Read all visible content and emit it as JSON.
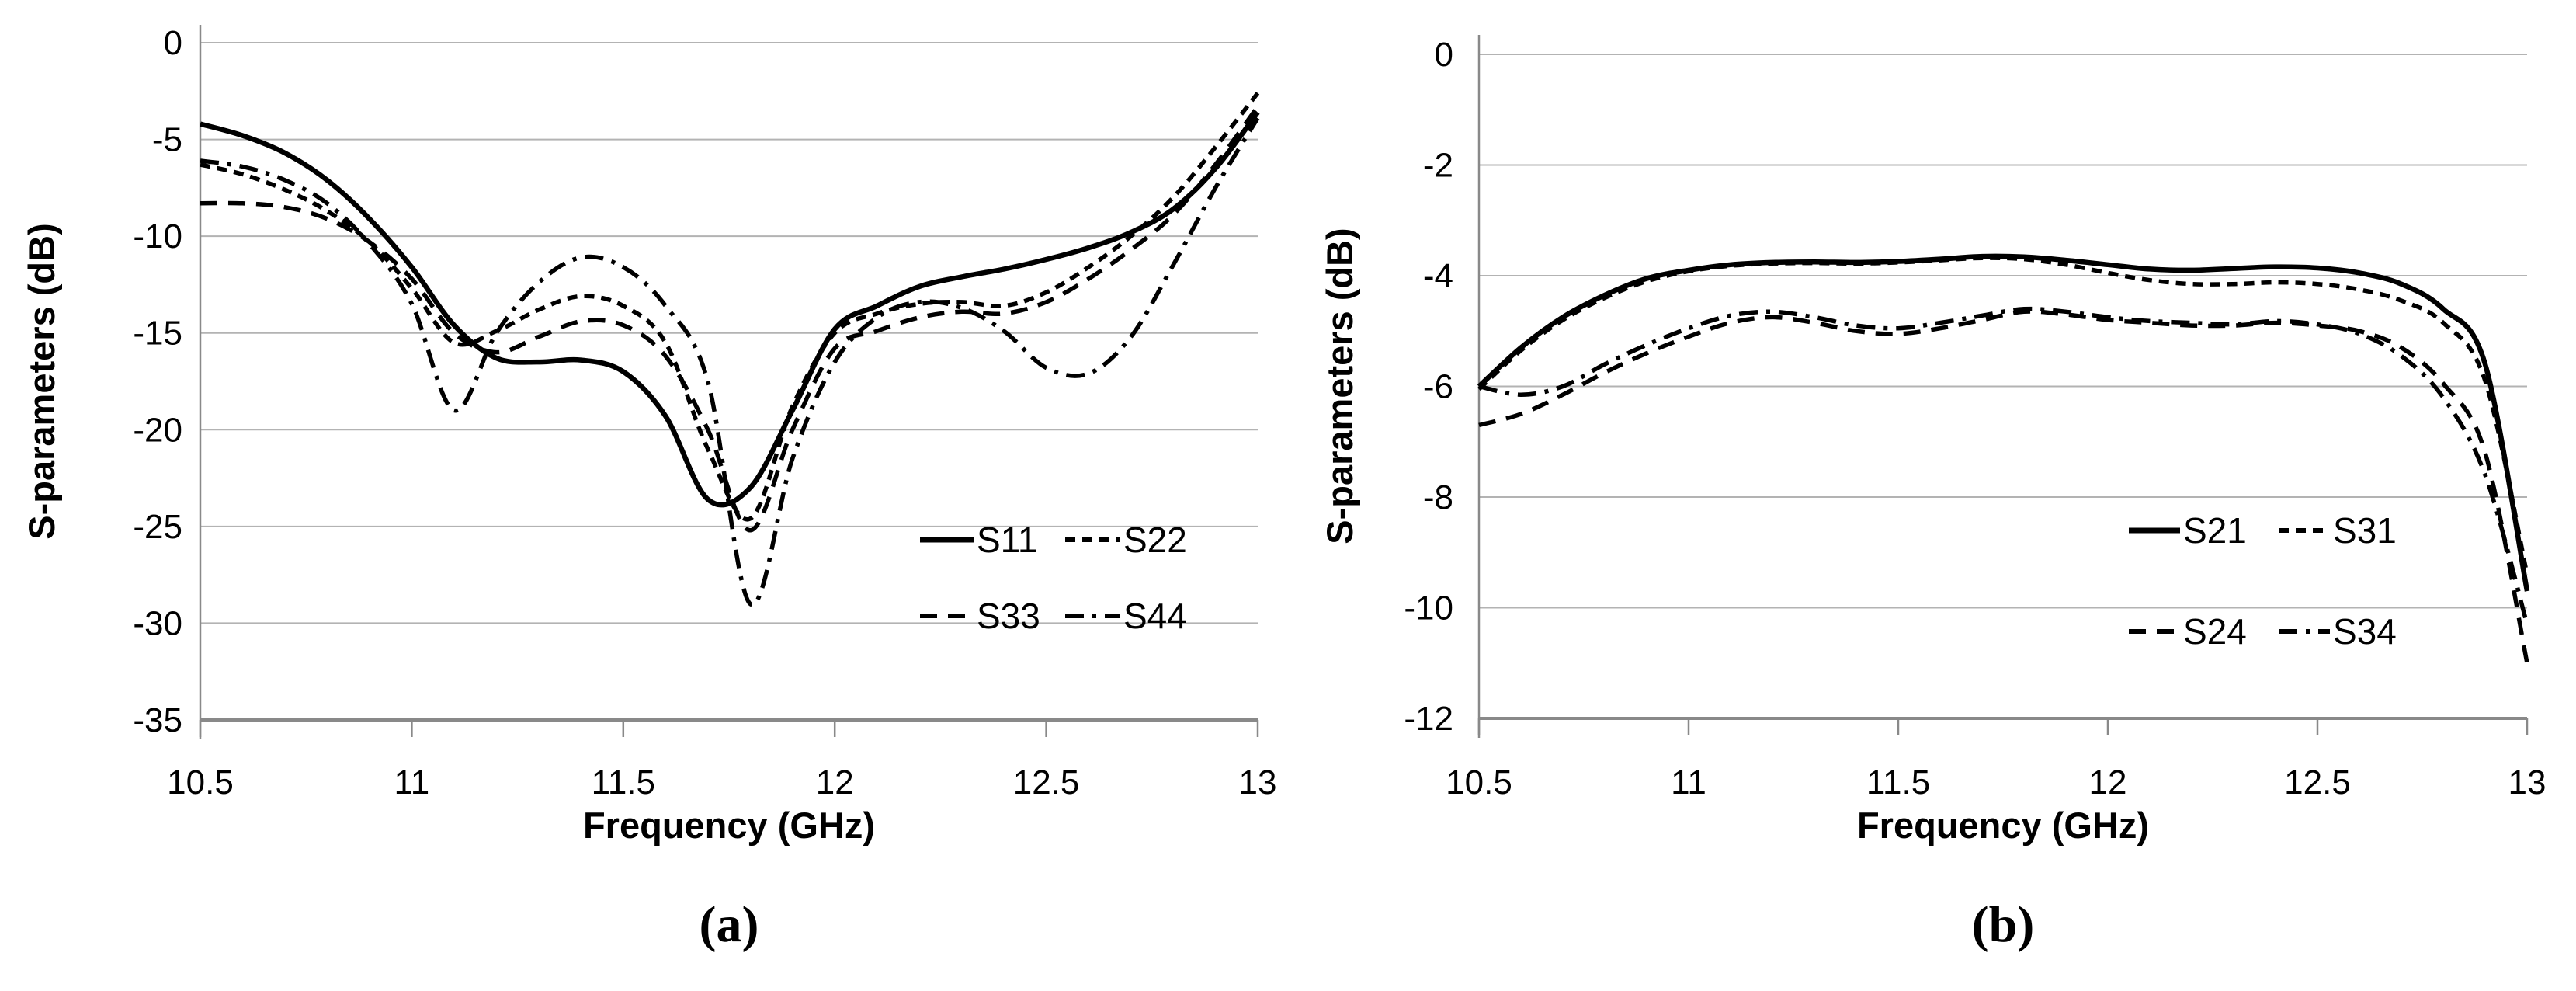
{
  "colors": {
    "background": "#ffffff",
    "curve": "#000000",
    "grid": "#b3b3b3",
    "axis": "#898989",
    "text": "#000000"
  },
  "chart_data": [
    {
      "type": "line",
      "caption": "(a)",
      "xlabel": "Frequency (GHz)",
      "ylabel": "S-parameters (dB)",
      "xlim": [
        10.5,
        13
      ],
      "ylim": [
        -35,
        0
      ],
      "x_ticks": [
        10.5,
        11,
        11.5,
        12,
        12.5,
        13
      ],
      "x_tick_labels": [
        "10.5",
        "11",
        "11.5",
        "12",
        "12.5",
        "13"
      ],
      "y_ticks": [
        0,
        -5,
        -10,
        -15,
        -20,
        -25,
        -30,
        -35
      ],
      "y_tick_labels": [
        "0",
        "-5",
        "-10",
        "-15",
        "-20",
        "-25",
        "-30",
        "-35"
      ],
      "grid": "horizontal gridlines",
      "legend_position": "inside lower right",
      "legend_rows": [
        [
          "S11",
          "S22"
        ],
        [
          "S33",
          "S44"
        ]
      ],
      "x": [
        10.5,
        10.6,
        10.7,
        10.8,
        10.9,
        11.0,
        11.1,
        11.2,
        11.3,
        11.4,
        11.5,
        11.6,
        11.7,
        11.8,
        11.9,
        12.0,
        12.1,
        12.2,
        12.3,
        12.4,
        12.5,
        12.6,
        12.7,
        12.8,
        12.9,
        13.0
      ],
      "series": [
        {
          "name": "S11",
          "line_style": "solid",
          "values": [
            -4.2,
            -4.8,
            -5.7,
            -7.1,
            -9.1,
            -11.6,
            -14.6,
            -16.3,
            -16.5,
            -16.4,
            -17.0,
            -19.3,
            -23.6,
            -23.0,
            -19.0,
            -14.8,
            -13.6,
            -12.6,
            -12.1,
            -11.7,
            -11.2,
            -10.6,
            -9.8,
            -8.6,
            -6.5,
            -3.6
          ]
        },
        {
          "name": "S22",
          "line_style": "short-dash",
          "values": [
            -6.3,
            -6.8,
            -7.6,
            -8.7,
            -10.3,
            -12.7,
            -15.5,
            -14.9,
            -13.8,
            -13.1,
            -13.6,
            -15.5,
            -21.0,
            -24.6,
            -18.8,
            -15.0,
            -14.0,
            -13.5,
            -13.4,
            -13.6,
            -12.9,
            -11.6,
            -10.0,
            -8.0,
            -5.4,
            -2.6
          ]
        },
        {
          "name": "S33",
          "line_style": "medium-dash",
          "values": [
            -8.3,
            -8.3,
            -8.5,
            -9.1,
            -10.3,
            -12.2,
            -15.0,
            -16.0,
            -15.2,
            -14.4,
            -14.6,
            -16.2,
            -20.0,
            -25.2,
            -20.0,
            -15.8,
            -14.9,
            -14.2,
            -13.9,
            -14.0,
            -13.4,
            -12.2,
            -10.7,
            -8.9,
            -6.3,
            -3.3
          ]
        },
        {
          "name": "S44",
          "line_style": "dash-dot",
          "values": [
            -6.1,
            -6.4,
            -7.1,
            -8.3,
            -10.4,
            -13.5,
            -19.0,
            -15.0,
            -12.4,
            -11.1,
            -11.6,
            -13.6,
            -17.5,
            -29.0,
            -21.5,
            -16.5,
            -14.2,
            -13.4,
            -13.7,
            -14.9,
            -16.8,
            -17.1,
            -15.2,
            -11.5,
            -7.5,
            -3.9
          ]
        }
      ]
    },
    {
      "type": "line",
      "caption": "(b)",
      "xlabel": "Frequency (GHz)",
      "ylabel": "S-parameters (dB)",
      "xlim": [
        10.5,
        13
      ],
      "ylim": [
        -12,
        0
      ],
      "x_ticks": [
        10.5,
        11,
        11.5,
        12,
        12.5,
        13
      ],
      "x_tick_labels": [
        "10.5",
        "11",
        "11.5",
        "12",
        "12.5",
        "13"
      ],
      "y_ticks": [
        0,
        -2,
        -4,
        -6,
        -8,
        -10,
        -12
      ],
      "y_tick_labels": [
        "0",
        "-2",
        "-4",
        "-6",
        "-8",
        "-10",
        "-12"
      ],
      "grid": "horizontal gridlines",
      "legend_position": "inside lower right",
      "legend_rows": [
        [
          "S21",
          "S31"
        ],
        [
          "S24",
          "S34"
        ]
      ],
      "x": [
        10.5,
        10.6,
        10.7,
        10.8,
        10.9,
        11.0,
        11.1,
        11.2,
        11.3,
        11.4,
        11.5,
        11.6,
        11.7,
        11.8,
        11.9,
        12.0,
        12.1,
        12.2,
        12.3,
        12.4,
        12.5,
        12.6,
        12.7,
        12.8,
        12.9,
        13.0
      ],
      "series": [
        {
          "name": "S21",
          "line_style": "solid",
          "values": [
            -6.0,
            -5.3,
            -4.75,
            -4.35,
            -4.05,
            -3.9,
            -3.8,
            -3.76,
            -3.75,
            -3.76,
            -3.74,
            -3.7,
            -3.65,
            -3.66,
            -3.72,
            -3.8,
            -3.88,
            -3.9,
            -3.87,
            -3.84,
            -3.86,
            -3.95,
            -4.15,
            -4.6,
            -5.6,
            -9.7
          ]
        },
        {
          "name": "S31",
          "line_style": "short-dash",
          "values": [
            -6.05,
            -5.35,
            -4.8,
            -4.4,
            -4.1,
            -3.92,
            -3.82,
            -3.78,
            -3.77,
            -3.78,
            -3.76,
            -3.72,
            -3.68,
            -3.7,
            -3.8,
            -3.95,
            -4.08,
            -4.15,
            -4.15,
            -4.12,
            -4.15,
            -4.25,
            -4.45,
            -4.85,
            -5.9,
            -9.4
          ]
        },
        {
          "name": "S24",
          "line_style": "medium-dash",
          "values": [
            -6.7,
            -6.5,
            -6.15,
            -5.75,
            -5.4,
            -5.1,
            -4.85,
            -4.75,
            -4.85,
            -5.0,
            -5.05,
            -4.95,
            -4.8,
            -4.65,
            -4.7,
            -4.8,
            -4.85,
            -4.9,
            -4.9,
            -4.85,
            -4.9,
            -5.0,
            -5.3,
            -5.95,
            -7.2,
            -11.0
          ]
        },
        {
          "name": "S34",
          "line_style": "dash-dot",
          "values": [
            -6.0,
            -6.15,
            -6.0,
            -5.6,
            -5.25,
            -4.95,
            -4.72,
            -4.65,
            -4.75,
            -4.9,
            -4.95,
            -4.85,
            -4.72,
            -4.6,
            -4.65,
            -4.75,
            -4.82,
            -4.85,
            -4.88,
            -4.82,
            -4.88,
            -5.05,
            -5.45,
            -6.2,
            -7.6,
            -10.3
          ]
        }
      ]
    }
  ]
}
